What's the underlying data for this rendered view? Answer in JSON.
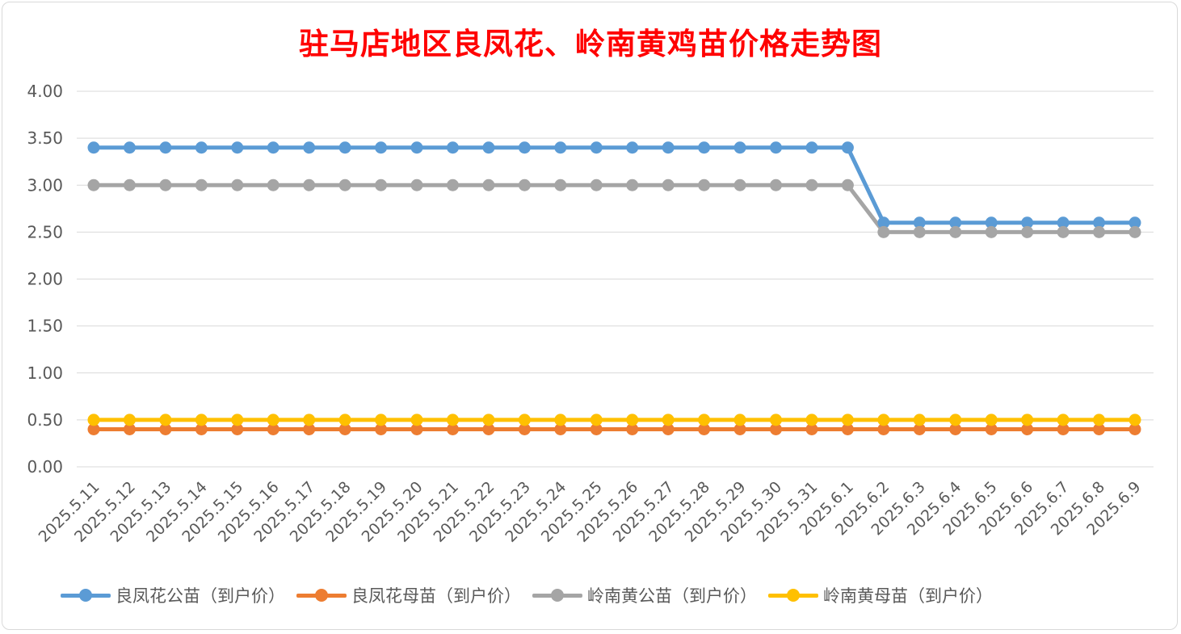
{
  "title": "驻马店地区良凤花、岭南黄鸡苗价格走势图",
  "chart_data": {
    "type": "line",
    "title": "驻马店地区良凤花、岭南黄鸡苗价格走势图",
    "xlabel": "",
    "ylabel": "",
    "ylim": [
      0,
      4
    ],
    "ytick_step": 0.5,
    "ytick_labels": [
      "0.00",
      "0.50",
      "1.00",
      "1.50",
      "2.00",
      "2.50",
      "3.00",
      "3.50",
      "4.00"
    ],
    "grid": true,
    "legend_position": "bottom",
    "categories": [
      "2025.5.11",
      "2025.5.12",
      "2025.5.13",
      "2025.5.14",
      "2025.5.15",
      "2025.5.16",
      "2025.5.17",
      "2025.5.18",
      "2025.5.19",
      "2025.5.20",
      "2025.5.21",
      "2025.5.22",
      "2025.5.23",
      "2025.5.24",
      "2025.5.25",
      "2025.5.26",
      "2025.5.27",
      "2025.5.28",
      "2025.5.29",
      "2025.5.30",
      "2025.5.31",
      "2025.6.1",
      "2025.6.2",
      "2025.6.3",
      "2025.6.4",
      "2025.6.5",
      "2025.6.6",
      "2025.6.7",
      "2025.6.8",
      "2025.6.9"
    ],
    "series": [
      {
        "name": "良凤花公苗（到户价）",
        "color": "#5b9bd5",
        "values": [
          3.4,
          3.4,
          3.4,
          3.4,
          3.4,
          3.4,
          3.4,
          3.4,
          3.4,
          3.4,
          3.4,
          3.4,
          3.4,
          3.4,
          3.4,
          3.4,
          3.4,
          3.4,
          3.4,
          3.4,
          3.4,
          3.4,
          2.6,
          2.6,
          2.6,
          2.6,
          2.6,
          2.6,
          2.6,
          2.6
        ]
      },
      {
        "name": "良凤花母苗（到户价）",
        "color": "#ed7d31",
        "values": [
          0.4,
          0.4,
          0.4,
          0.4,
          0.4,
          0.4,
          0.4,
          0.4,
          0.4,
          0.4,
          0.4,
          0.4,
          0.4,
          0.4,
          0.4,
          0.4,
          0.4,
          0.4,
          0.4,
          0.4,
          0.4,
          0.4,
          0.4,
          0.4,
          0.4,
          0.4,
          0.4,
          0.4,
          0.4,
          0.4
        ]
      },
      {
        "name": "岭南黄公苗（到户价）",
        "color": "#a5a5a5",
        "values": [
          3.0,
          3.0,
          3.0,
          3.0,
          3.0,
          3.0,
          3.0,
          3.0,
          3.0,
          3.0,
          3.0,
          3.0,
          3.0,
          3.0,
          3.0,
          3.0,
          3.0,
          3.0,
          3.0,
          3.0,
          3.0,
          3.0,
          2.5,
          2.5,
          2.5,
          2.5,
          2.5,
          2.5,
          2.5,
          2.5
        ]
      },
      {
        "name": "岭南黄母苗（到户价）",
        "color": "#ffc000",
        "values": [
          0.5,
          0.5,
          0.5,
          0.5,
          0.5,
          0.5,
          0.5,
          0.5,
          0.5,
          0.5,
          0.5,
          0.5,
          0.5,
          0.5,
          0.5,
          0.5,
          0.5,
          0.5,
          0.5,
          0.5,
          0.5,
          0.5,
          0.5,
          0.5,
          0.5,
          0.5,
          0.5,
          0.5,
          0.5,
          0.5
        ]
      }
    ]
  }
}
